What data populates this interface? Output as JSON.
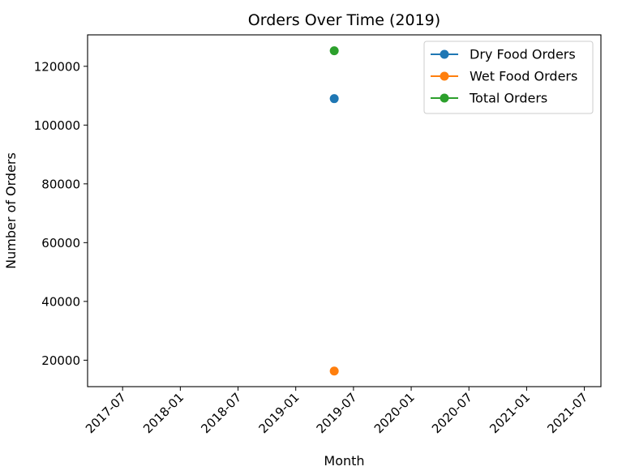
{
  "chart_data": {
    "type": "line",
    "title": "Orders Over Time (2019)",
    "xlabel": "Month",
    "ylabel": "Number of Orders",
    "x_tick_labels": [
      "2017-07",
      "2018-01",
      "2018-07",
      "2019-01",
      "2019-07",
      "2020-01",
      "2020-07",
      "2021-01",
      "2021-07"
    ],
    "y_tick_labels": [
      "20000",
      "40000",
      "60000",
      "80000",
      "100000",
      "120000"
    ],
    "x": [
      "2019-05"
    ],
    "series": [
      {
        "name": "Dry Food Orders",
        "color": "#1f77b4",
        "values": [
          109000
        ]
      },
      {
        "name": "Wet Food Orders",
        "color": "#ff7f0e",
        "values": [
          16300
        ]
      },
      {
        "name": "Total Orders",
        "color": "#2ca02c",
        "values": [
          125300
        ]
      }
    ],
    "ylim": [
      11000,
      130700
    ],
    "xlim": [
      "2017-03-12",
      "2021-08-23"
    ],
    "grid": false,
    "legend_position": "top-right"
  }
}
